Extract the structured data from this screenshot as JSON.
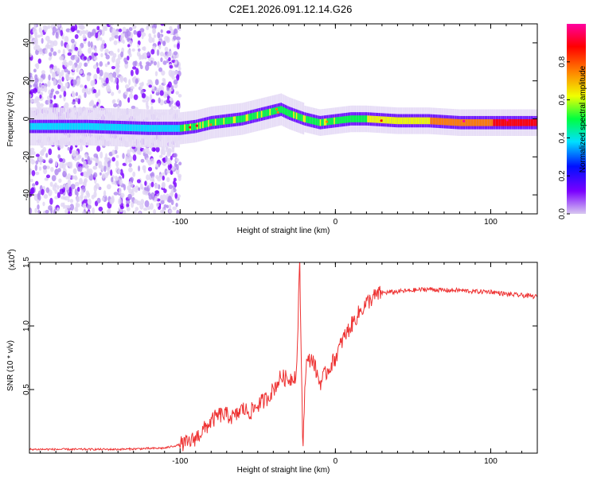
{
  "title": "C2E1.2026.091.12.14.G26",
  "chart_data": [
    {
      "type": "heatmap",
      "name": "spectrogram",
      "xlabel": "Height of straight line (km)",
      "ylabel": "Frequency (Hz)",
      "xlim": [
        -197,
        130
      ],
      "ylim": [
        -50,
        50
      ],
      "xticks": [
        -100,
        0,
        100
      ],
      "xtick_labels": [
        "-100",
        "0",
        "100"
      ],
      "yticks": [
        -40,
        -20,
        0,
        20,
        40
      ],
      "ytick_labels": [
        "-40",
        "-20",
        "0",
        "20",
        "40"
      ],
      "description_trace": {
        "x": [
          -197,
          -160,
          -120,
          -100,
          -90,
          -80,
          -70,
          -60,
          -50,
          -40,
          -35,
          -30,
          -20,
          -10,
          0,
          10,
          20,
          40,
          60,
          80,
          100,
          130
        ],
        "y": [
          -4,
          -4,
          -5,
          -5,
          -4,
          -2,
          -1,
          0,
          2,
          4,
          5,
          3,
          0,
          -2,
          -1,
          0,
          0,
          -1,
          -1,
          -2,
          -2,
          -2
        ]
      },
      "colorbar": {
        "label": "Normalized spectral amplitude",
        "range": [
          0,
          1
        ],
        "ticks": [
          0.0,
          0.2,
          0.4,
          0.6,
          0.8
        ],
        "tick_labels": [
          "0.0",
          "0.2",
          "0.4",
          "0.6",
          "0.8"
        ],
        "colors": [
          "#d8c8f0",
          "#7a00ff",
          "#0010ff",
          "#00e0ff",
          "#00ff40",
          "#f0ff00",
          "#ff8000",
          "#ff0000",
          "#ff00a0"
        ]
      }
    },
    {
      "type": "line",
      "name": "snr",
      "xlabel": "Height of straight line (km)",
      "ylabel": "SNR (10 * v/v)",
      "multiplier_label": "(x10",
      "multiplier_exp": "4",
      "multiplier_close": ")",
      "xlim": [
        -197,
        130
      ],
      "ylim": [
        0,
        1.5
      ],
      "xticks": [
        -100,
        0,
        100
      ],
      "xtick_labels": [
        "-100",
        "0",
        "100"
      ],
      "yticks": [
        0.5,
        1.0,
        1.5
      ],
      "ytick_labels": [
        "0.5",
        "1.0",
        "1.5"
      ],
      "color": "#ee3333",
      "x": [
        -197,
        -170,
        -140,
        -110,
        -95,
        -90,
        -85,
        -80,
        -75,
        -70,
        -65,
        -60,
        -55,
        -50,
        -45,
        -40,
        -35,
        -30,
        -25,
        -23,
        -21,
        -19,
        -15,
        -10,
        -5,
        0,
        5,
        10,
        15,
        20,
        25,
        30,
        40,
        50,
        60,
        70,
        80,
        90,
        100,
        110,
        120,
        130
      ],
      "y": [
        0.03,
        0.03,
        0.03,
        0.04,
        0.08,
        0.12,
        0.18,
        0.25,
        0.3,
        0.3,
        0.28,
        0.35,
        0.32,
        0.38,
        0.42,
        0.5,
        0.6,
        0.58,
        0.62,
        1.5,
        0.05,
        0.7,
        0.75,
        0.55,
        0.65,
        0.75,
        0.9,
        1.0,
        1.1,
        1.18,
        1.23,
        1.26,
        1.27,
        1.28,
        1.29,
        1.28,
        1.28,
        1.27,
        1.27,
        1.25,
        1.24,
        1.23
      ],
      "noise": 0.06
    }
  ]
}
